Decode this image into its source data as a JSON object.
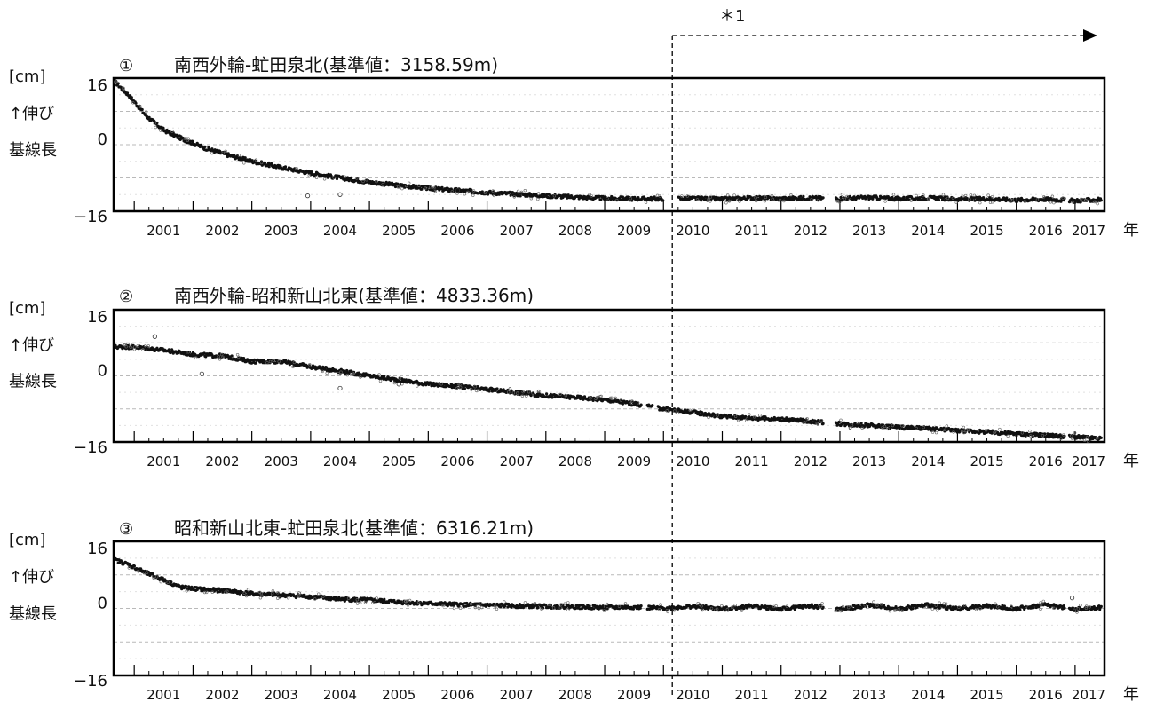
{
  "annotation": {
    "label": "＊1"
  },
  "common": {
    "unit_label": "[cm]",
    "ylabel_line1": "↑伸び",
    "ylabel_line2": "基線長",
    "xunit": "年"
  },
  "chart_data": [
    {
      "type": "scatter",
      "number": "①",
      "title": "南西外輪-虻田泉北(基準値：3158.59m)",
      "ylim": [
        -16,
        16
      ],
      "y_ticks": [
        "16",
        "0",
        "−16"
      ],
      "x_tick_labels": [
        "2001",
        "2002",
        "2003",
        "2004",
        "2005",
        "2006",
        "2007",
        "2008",
        "2009",
        "2010",
        "2011",
        "2012",
        "2013",
        "2014",
        "2015",
        "2016",
        "2017"
      ],
      "grid": true,
      "gaps": [
        [
          2010.0,
          2010.25
        ],
        [
          2012.72,
          2012.92
        ],
        [
          2016.82,
          2016.9
        ]
      ],
      "outliers": [
        [
          2003.95,
          -12.3
        ],
        [
          2004.5,
          -12.0
        ],
        [
          2006.5,
          -11.0
        ]
      ],
      "series": [
        {
          "x": [
            2000.68,
            2000.9,
            2001.2,
            2001.5,
            2001.8,
            2002.2,
            2002.6,
            2003.0,
            2003.5,
            2004.0,
            2004.5,
            2005.0,
            2005.5,
            2006.0,
            2006.5,
            2007.0,
            2007.5,
            2008.0,
            2008.5,
            2009.0,
            2009.5,
            2010.0,
            2010.5,
            2011.0,
            2011.5,
            2012.0,
            2012.5,
            2013.0,
            2013.5,
            2014.0,
            2014.5,
            2015.0,
            2015.5,
            2016.0,
            2016.5,
            2017.0,
            2017.45
          ],
          "y": [
            15.0,
            12.0,
            7.0,
            3.5,
            1.5,
            -0.8,
            -2.5,
            -4.0,
            -5.5,
            -6.8,
            -8.0,
            -9.0,
            -9.8,
            -10.5,
            -11.0,
            -11.5,
            -11.9,
            -12.3,
            -12.6,
            -12.9,
            -13.0,
            -13.0,
            -12.9,
            -13.1,
            -12.8,
            -13.0,
            -12.8,
            -13.0,
            -12.7,
            -13.0,
            -12.8,
            -13.1,
            -13.0,
            -13.3,
            -13.1,
            -13.5,
            -13.2
          ]
        }
      ]
    },
    {
      "type": "scatter",
      "number": "②",
      "title": "南西外輪-昭和新山北東(基準値：4833.36m)",
      "ylim": [
        -16,
        16
      ],
      "y_ticks": [
        "16",
        "0",
        "−16"
      ],
      "x_tick_labels": [
        "2001",
        "2002",
        "2003",
        "2004",
        "2005",
        "2006",
        "2007",
        "2008",
        "2009",
        "2010",
        "2011",
        "2012",
        "2013",
        "2014",
        "2015",
        "2016",
        "2017"
      ],
      "grid": true,
      "gaps": [
        [
          2009.62,
          2009.72
        ],
        [
          2009.82,
          2009.9
        ],
        [
          2012.72,
          2012.92
        ],
        [
          2016.82,
          2016.9
        ]
      ],
      "outliers": [
        [
          2001.35,
          9.5
        ],
        [
          2002.15,
          0.5
        ],
        [
          2004.5,
          -3.0
        ],
        [
          2005.5,
          -2.0
        ]
      ],
      "series": [
        {
          "x": [
            2000.68,
            2001.0,
            2001.5,
            2002.0,
            2002.5,
            2003.0,
            2003.5,
            2004.0,
            2004.5,
            2005.0,
            2005.5,
            2006.0,
            2006.5,
            2007.0,
            2007.5,
            2008.0,
            2008.5,
            2009.0,
            2009.5,
            2010.0,
            2010.5,
            2011.0,
            2011.5,
            2012.0,
            2012.5,
            2013.0,
            2013.5,
            2014.0,
            2014.5,
            2015.0,
            2015.5,
            2016.0,
            2016.5,
            2017.0,
            2017.45
          ],
          "y": [
            7.0,
            7.0,
            6.2,
            5.2,
            4.8,
            3.5,
            3.5,
            2.2,
            1.2,
            0.0,
            -1.0,
            -2.0,
            -2.5,
            -3.3,
            -4.0,
            -4.8,
            -5.2,
            -5.8,
            -6.8,
            -8.0,
            -8.8,
            -9.8,
            -10.2,
            -10.5,
            -11.0,
            -11.6,
            -12.0,
            -12.4,
            -12.8,
            -13.2,
            -13.6,
            -14.0,
            -14.4,
            -14.8,
            -15.2
          ]
        }
      ]
    },
    {
      "type": "scatter",
      "number": "③",
      "title": "昭和新山北東-虻田泉北(基準値：6316.21m)",
      "ylim": [
        -16,
        16
      ],
      "y_ticks": [
        "16",
        "0",
        "−16"
      ],
      "x_tick_labels": [
        "2001",
        "2002",
        "2003",
        "2004",
        "2005",
        "2006",
        "2007",
        "2008",
        "2009",
        "2010",
        "2011",
        "2012",
        "2013",
        "2014",
        "2015",
        "2016",
        "2017"
      ],
      "grid": true,
      "gaps": [
        [
          2009.62,
          2009.72
        ],
        [
          2012.72,
          2012.92
        ],
        [
          2016.82,
          2016.9
        ]
      ],
      "outliers": [
        [
          2003.8,
          3.5
        ],
        [
          2016.95,
          2.5
        ]
      ],
      "series": [
        {
          "x": [
            2000.68,
            2000.9,
            2001.2,
            2001.5,
            2001.8,
            2002.2,
            2002.6,
            2003.0,
            2003.5,
            2004.0,
            2004.5,
            2005.0,
            2005.5,
            2006.0,
            2006.5,
            2007.0,
            2007.5,
            2008.0,
            2008.5,
            2009.0,
            2009.5,
            2010.0,
            2010.5,
            2011.0,
            2011.5,
            2012.0,
            2012.5,
            2013.0,
            2013.5,
            2014.0,
            2014.5,
            2015.0,
            2015.5,
            2016.0,
            2016.5,
            2017.0,
            2017.45
          ],
          "y": [
            11.5,
            10.5,
            8.5,
            6.8,
            5.0,
            4.5,
            4.2,
            3.5,
            3.2,
            2.8,
            2.2,
            2.0,
            1.5,
            1.2,
            0.9,
            0.8,
            0.6,
            0.5,
            0.4,
            0.2,
            0.3,
            0.0,
            0.5,
            -0.2,
            0.6,
            -0.2,
            0.6,
            -0.3,
            0.8,
            -0.1,
            0.8,
            -0.1,
            0.6,
            -0.1,
            0.9,
            -0.3,
            0.2
          ]
        }
      ]
    }
  ]
}
